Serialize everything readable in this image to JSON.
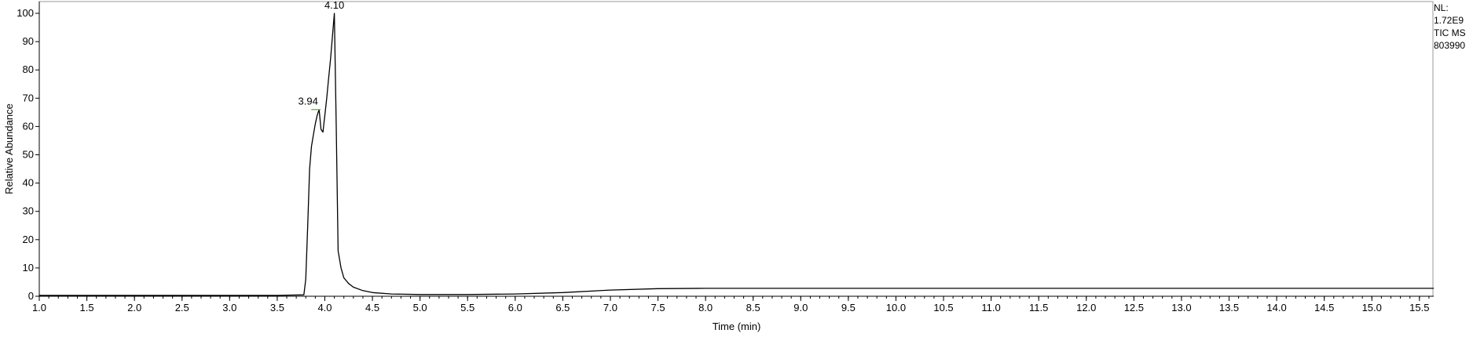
{
  "chart_data": {
    "type": "line",
    "xlabel": "Time (min)",
    "ylabel": "Relative Abundance",
    "xlim": [
      1.0,
      15.65
    ],
    "ylim": [
      0,
      100
    ],
    "x_ticks": [
      "1.0",
      "1.5",
      "2.0",
      "2.5",
      "3.0",
      "3.5",
      "4.0",
      "4.5",
      "5.0",
      "5.5",
      "6.0",
      "6.5",
      "7.0",
      "7.5",
      "8.0",
      "8.5",
      "9.0",
      "9.5",
      "10.0",
      "10.5",
      "11.0",
      "11.5",
      "12.0",
      "12.5",
      "13.0",
      "13.5",
      "14.0",
      "14.5",
      "15.0",
      "15.5"
    ],
    "y_ticks": [
      "0",
      "10",
      "20",
      "30",
      "40",
      "50",
      "60",
      "70",
      "80",
      "90",
      "100"
    ],
    "annotations": [
      {
        "text": "4.10",
        "x": 4.1,
        "y": 100
      },
      {
        "text": "3.94",
        "x": 3.94,
        "y": 66
      }
    ],
    "series": [
      {
        "x": [
          1.0,
          2.0,
          3.0,
          3.5,
          3.78,
          3.8,
          3.82,
          3.84,
          3.86,
          3.88,
          3.9,
          3.92,
          3.94,
          3.96,
          3.98,
          4.0,
          4.02,
          4.04,
          4.06,
          4.08,
          4.1,
          4.12,
          4.14,
          4.17,
          4.2,
          4.25,
          4.3,
          4.4,
          4.5,
          4.7,
          5.0,
          5.5,
          6.0,
          6.5,
          7.0,
          7.5,
          8.0,
          9.0,
          10.0,
          11.0,
          12.0,
          13.0,
          14.0,
          15.0,
          15.65
        ],
        "y": [
          0.3,
          0.3,
          0.3,
          0.3,
          0.5,
          6,
          25,
          45,
          53,
          57,
          61,
          64,
          66,
          59,
          58,
          64,
          70,
          77,
          84,
          92,
          100,
          60,
          16,
          10,
          6.5,
          4.5,
          3.2,
          2.0,
          1.3,
          0.8,
          0.6,
          0.6,
          0.8,
          1.3,
          2.2,
          2.7,
          2.8,
          2.8,
          2.8,
          2.8,
          2.8,
          2.8,
          2.8,
          2.8,
          2.8
        ]
      }
    ]
  },
  "info": {
    "nl_label": "NL:",
    "nl_value": "1.72E9",
    "scan_filter": "TIC  MS",
    "file_id": "803990"
  }
}
